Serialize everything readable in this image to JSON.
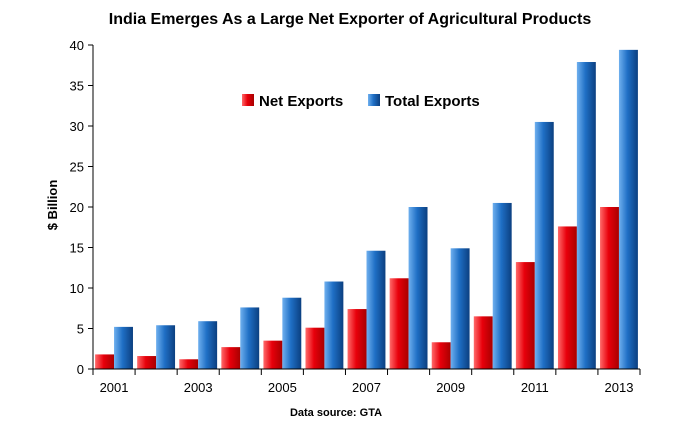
{
  "chart_data": {
    "type": "bar",
    "title": "India Emerges As a Large Net Exporter of Agricultural Products",
    "ylabel": "$ Billion",
    "xlabel": "",
    "source_note": "Data source: GTA",
    "ylim": [
      0,
      40
    ],
    "yticks": [
      0,
      5,
      10,
      15,
      20,
      25,
      30,
      35,
      40
    ],
    "categories": [
      "2001",
      "2002",
      "2003",
      "2004",
      "2005",
      "2006",
      "2007",
      "2008",
      "2009",
      "2010",
      "2011",
      "2012",
      "2013"
    ],
    "xtick_labels": [
      "2001",
      "",
      "2003",
      "",
      "2005",
      "",
      "2007",
      "",
      "2009",
      "",
      "2011",
      "",
      "2013"
    ],
    "grid": false,
    "legend_position": "upper-center",
    "series": [
      {
        "name": "Net Exports",
        "color": "#e8000b",
        "values": [
          1.8,
          1.6,
          1.2,
          2.7,
          3.5,
          5.1,
          7.4,
          11.2,
          3.3,
          6.5,
          13.2,
          17.6,
          20.0
        ]
      },
      {
        "name": "Total Exports",
        "color": "#1f6fc5",
        "values": [
          5.2,
          5.4,
          5.9,
          7.6,
          8.8,
          10.8,
          14.6,
          20.0,
          14.9,
          20.5,
          30.5,
          37.9,
          39.4
        ]
      }
    ]
  }
}
